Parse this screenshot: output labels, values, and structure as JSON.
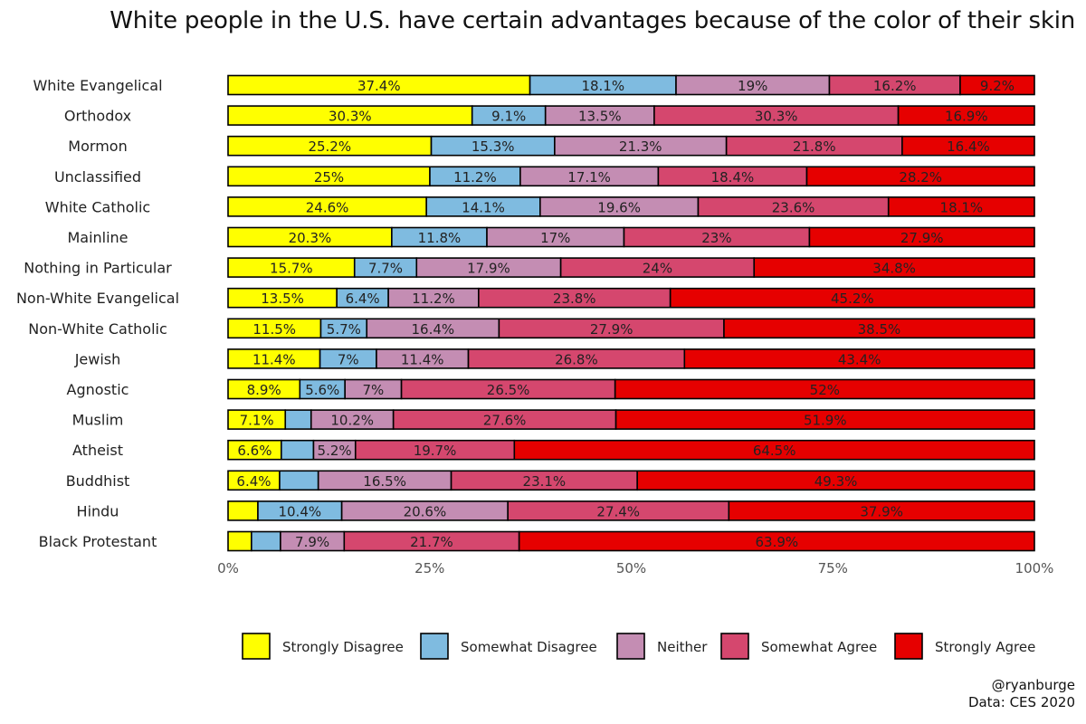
{
  "chart_data": {
    "type": "bar",
    "orientation": "horizontal",
    "stacked": true,
    "title": "White people in the U.S. have certain advantages because of the color of their skin",
    "categories": [
      "White Evangelical",
      "Orthodox",
      "Mormon",
      "Unclassified",
      "White Catholic",
      "Mainline",
      "Nothing in Particular",
      "Non-White Evangelical",
      "Non-White Catholic",
      "Jewish",
      "Agnostic",
      "Muslim",
      "Atheist",
      "Buddhist",
      "Hindu",
      "Black Protestant"
    ],
    "series": [
      {
        "name": "Strongly Disagree",
        "color": "#ffff00",
        "values": [
          37.4,
          30.3,
          25.2,
          25,
          24.6,
          20.3,
          15.7,
          13.5,
          11.5,
          11.4,
          8.9,
          7.1,
          6.6,
          6.4,
          3.7,
          2.9
        ]
      },
      {
        "name": "Somewhat Disagree",
        "color": "#7fbbe0",
        "values": [
          18.1,
          9.1,
          15.3,
          11.2,
          14.1,
          11.8,
          7.7,
          6.4,
          5.7,
          7,
          5.6,
          3.2,
          4,
          4.8,
          10.4,
          3.6
        ]
      },
      {
        "name": "Neither",
        "color": "#c48db3",
        "values": [
          19,
          13.5,
          21.3,
          17.1,
          19.6,
          17,
          17.9,
          11.2,
          16.4,
          11.4,
          7,
          10.2,
          5.2,
          16.5,
          20.6,
          7.9
        ]
      },
      {
        "name": "Somewhat Agree",
        "color": "#d5476e",
        "values": [
          16.2,
          30.3,
          21.8,
          18.4,
          23.6,
          23,
          24,
          23.8,
          27.9,
          26.8,
          26.5,
          27.6,
          19.7,
          23.1,
          27.4,
          21.7
        ]
      },
      {
        "name": "Strongly Agree",
        "color": "#e60000",
        "values": [
          9.2,
          16.9,
          16.4,
          28.2,
          18.1,
          27.9,
          34.8,
          45.2,
          38.5,
          43.4,
          52,
          51.9,
          64.5,
          49.3,
          37.9,
          63.9
        ]
      }
    ],
    "labels": [
      [
        "37.4%",
        "18.1%",
        "19%",
        "16.2%",
        "9.2%"
      ],
      [
        "30.3%",
        "9.1%",
        "13.5%",
        "30.3%",
        "16.9%"
      ],
      [
        "25.2%",
        "15.3%",
        "21.3%",
        "21.8%",
        "16.4%"
      ],
      [
        "25%",
        "11.2%",
        "17.1%",
        "18.4%",
        "28.2%"
      ],
      [
        "24.6%",
        "14.1%",
        "19.6%",
        "23.6%",
        "18.1%"
      ],
      [
        "20.3%",
        "11.8%",
        "17%",
        "23%",
        "27.9%"
      ],
      [
        "15.7%",
        "7.7%",
        "17.9%",
        "24%",
        "34.8%"
      ],
      [
        "13.5%",
        "6.4%",
        "11.2%",
        "23.8%",
        "45.2%"
      ],
      [
        "11.5%",
        "5.7%",
        "16.4%",
        "27.9%",
        "38.5%"
      ],
      [
        "11.4%",
        "7%",
        "11.4%",
        "26.8%",
        "43.4%"
      ],
      [
        "8.9%",
        "5.6%",
        "7%",
        "26.5%",
        "52%"
      ],
      [
        "7.1%",
        "",
        "10.2%",
        "27.6%",
        "51.9%"
      ],
      [
        "6.6%",
        "",
        "5.2%",
        "19.7%",
        "64.5%"
      ],
      [
        "6.4%",
        "",
        "16.5%",
        "23.1%",
        "49.3%"
      ],
      [
        "",
        "10.4%",
        "20.6%",
        "27.4%",
        "37.9%"
      ],
      [
        "",
        "",
        "7.9%",
        "21.7%",
        "63.9%"
      ]
    ],
    "xlim": [
      0,
      100
    ],
    "x_ticks": [
      "0%",
      "25%",
      "50%",
      "75%",
      "100%"
    ],
    "x_tick_values": [
      0,
      25,
      50,
      75,
      100
    ],
    "legend_position": "bottom"
  },
  "credit": {
    "author": "@ryanburge",
    "source": "Data: CES 2020"
  }
}
